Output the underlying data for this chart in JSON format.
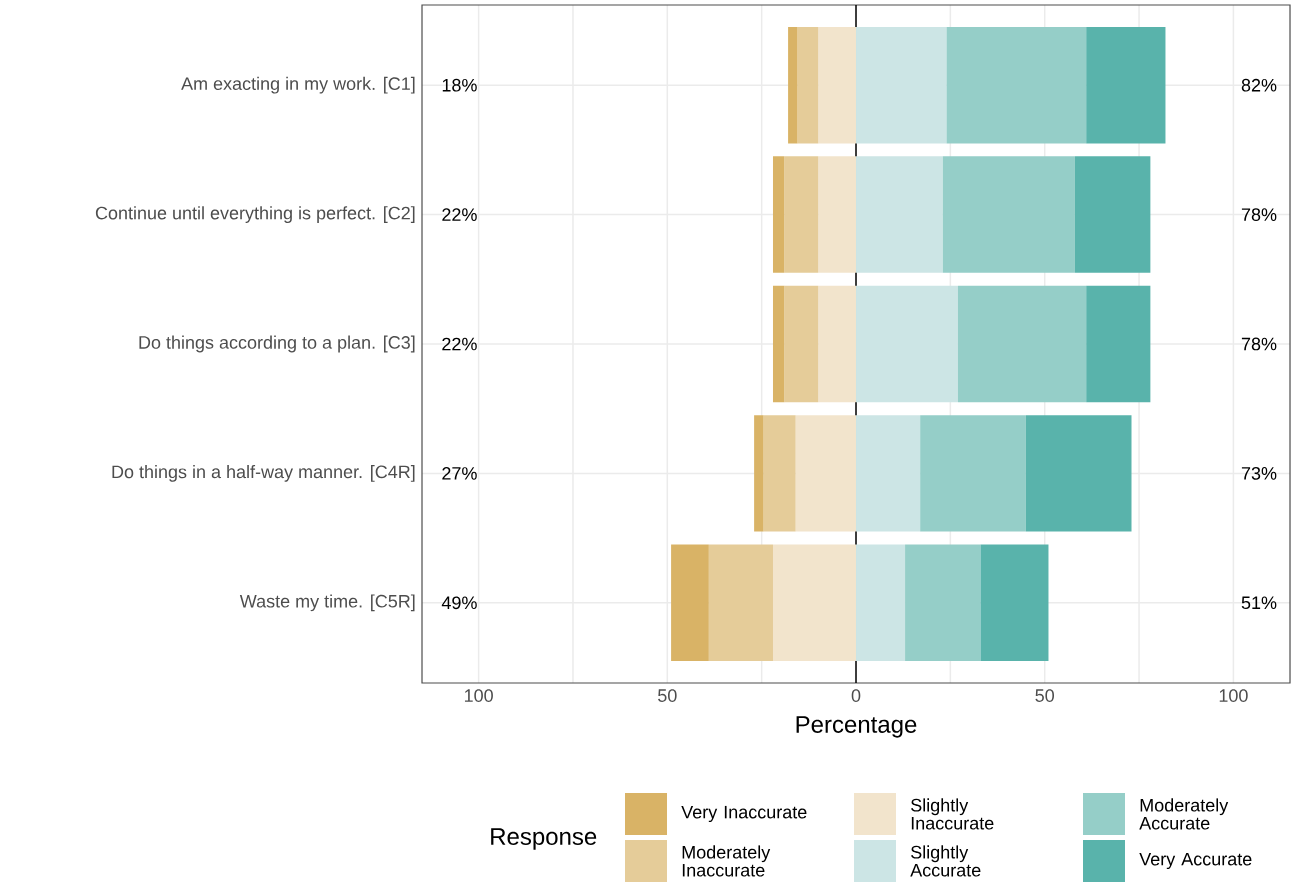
{
  "chart_data": {
    "type": "bar",
    "orientation": "horizontal",
    "stacked": true,
    "xlabel": "Percentage",
    "legend_title": "Response",
    "categories": [
      "Am exacting in my work. [C1]",
      "Continue until everything is perfect. [C2]",
      "Do things according to a plan. [C3]",
      "Do things in a half-way manner. [C4R]",
      "Waste my time. [C5R]"
    ],
    "series": [
      {
        "name": "Slightly Inaccurate",
        "color": "#f2e4cc",
        "values": [
          -10,
          -10,
          -10,
          -16,
          -22
        ]
      },
      {
        "name": "Moderately Inaccurate",
        "color": "#e5cc99",
        "values": [
          -5.5,
          -9,
          -9,
          -8.5,
          -17
        ]
      },
      {
        "name": "Very Inaccurate",
        "color": "#d9b366",
        "values": [
          -2.5,
          -3,
          -3,
          -2.5,
          -10
        ]
      },
      {
        "name": "Slightly Accurate",
        "color": "#cce5e5",
        "values": [
          24,
          23,
          27,
          17,
          13
        ]
      },
      {
        "name": "Moderately Accurate",
        "color": "#95cec8",
        "values": [
          37,
          35,
          34,
          28,
          20
        ]
      },
      {
        "name": "Very Accurate",
        "color": "#59b3ab",
        "values": [
          21,
          20,
          17,
          28,
          18
        ]
      }
    ],
    "xlim": [
      -115,
      115
    ],
    "xticks": [
      {
        "value": -100,
        "label": "100"
      },
      {
        "value": -75,
        "label": null
      },
      {
        "value": -50,
        "label": "50"
      },
      {
        "value": -25,
        "label": null
      },
      0,
      {
        "value": 25,
        "label": null
      },
      {
        "value": 50,
        "label": "50"
      },
      {
        "value": 75,
        "label": null
      },
      {
        "value": 100,
        "label": "100"
      }
    ],
    "ref_lines": [
      {
        "axis": "x",
        "value": 0,
        "color": "#000000"
      }
    ],
    "annotations": [
      "18%",
      "22%",
      "22%",
      "27%",
      "49%",
      "82%",
      "78%",
      "78%",
      "73%",
      "51%"
    ],
    "grid": true,
    "legend": "bottom"
  }
}
